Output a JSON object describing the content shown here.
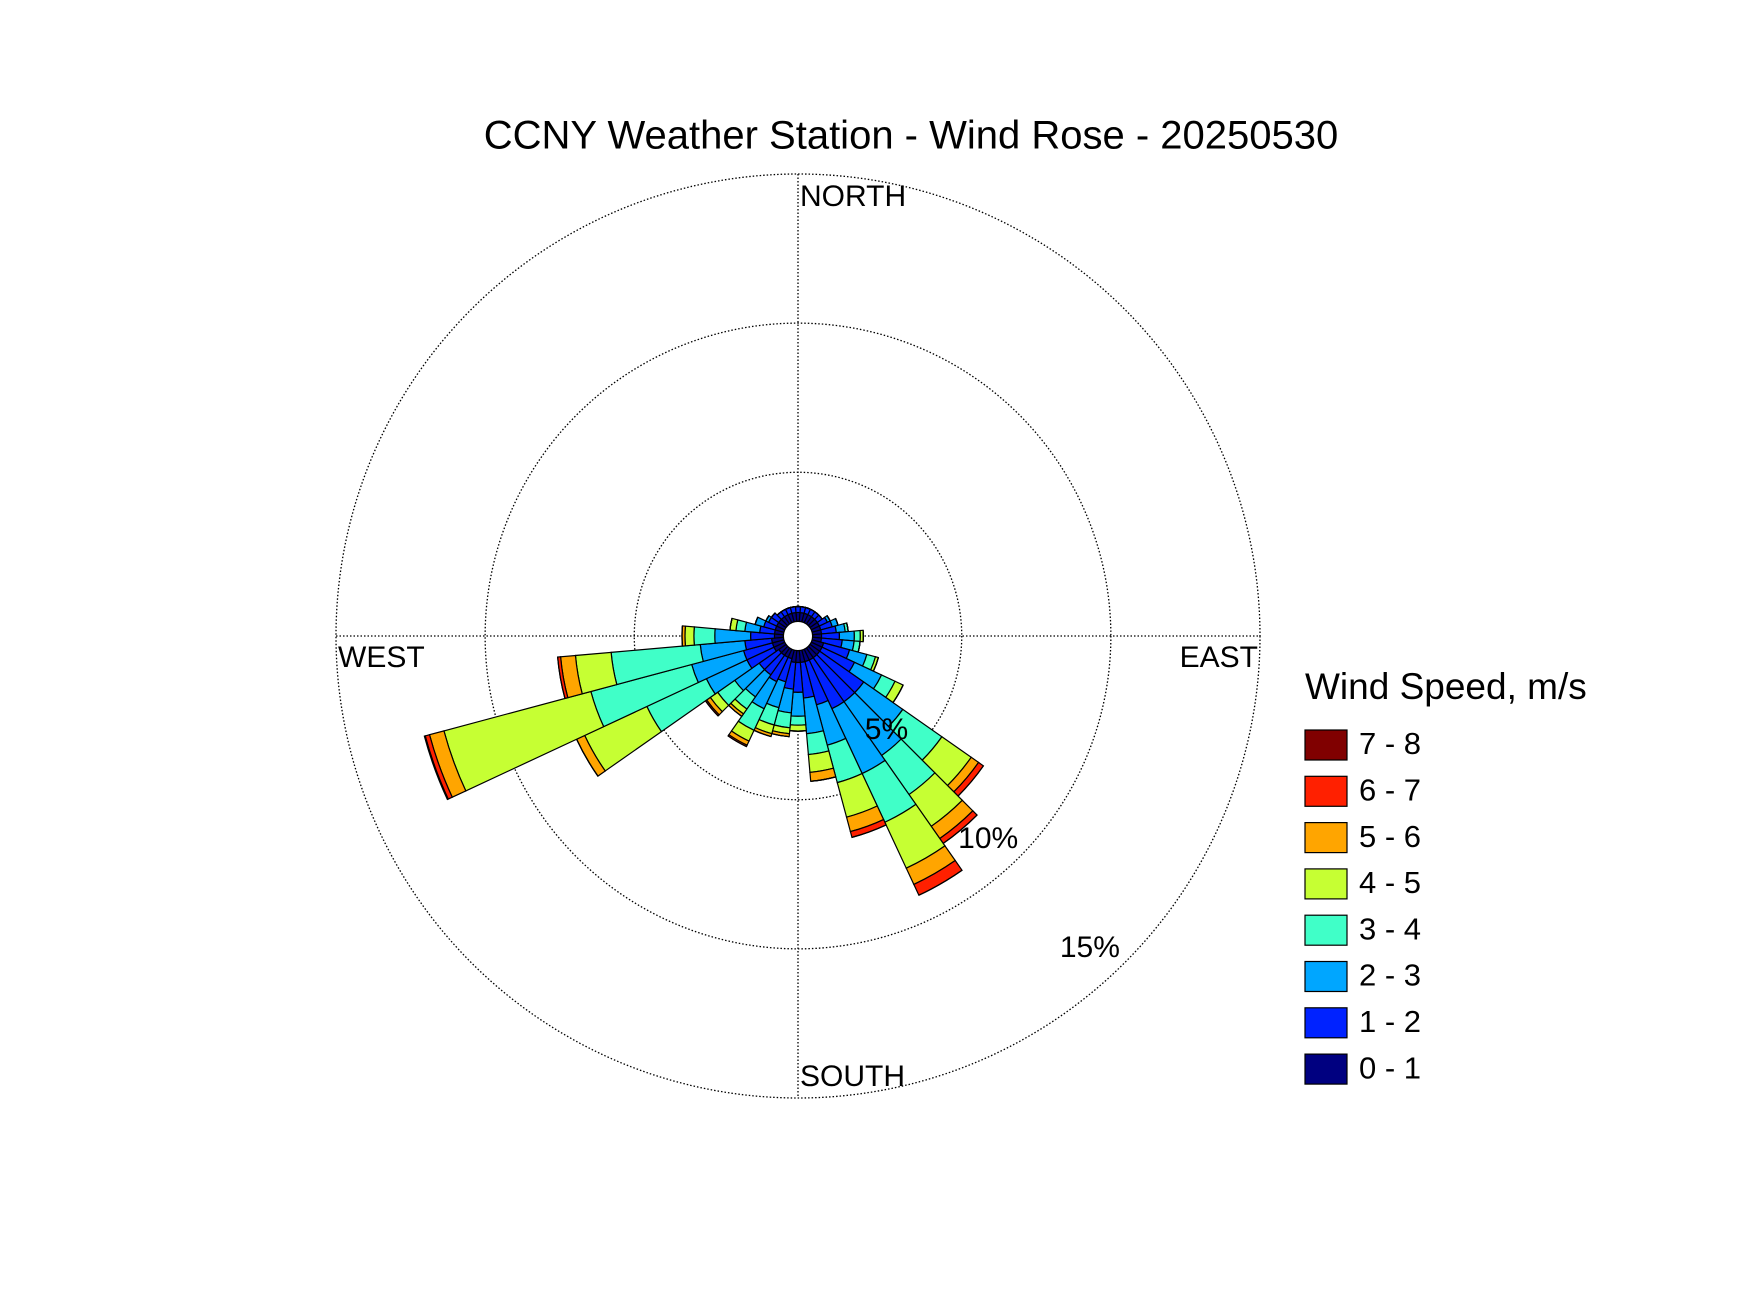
{
  "chart_data": {
    "type": "windrose",
    "title": "CCNY Weather Station - Wind Rose - 20250530",
    "compass_labels": [
      "NORTH",
      "EAST",
      "SOUTH",
      "WEST"
    ],
    "legend_title": "Wind Speed, m/s",
    "directions": [
      0,
      10,
      20,
      30,
      40,
      50,
      60,
      70,
      80,
      90,
      100,
      110,
      120,
      130,
      140,
      150,
      160,
      170,
      180,
      190,
      200,
      210,
      220,
      230,
      240,
      250,
      260,
      270,
      280,
      290,
      300,
      310,
      320,
      330,
      340,
      350
    ],
    "rlim": [
      0,
      15
    ],
    "rticks": [
      {
        "value": 5,
        "label": "5%"
      },
      {
        "value": 10,
        "label": "10%"
      },
      {
        "value": 15,
        "label": "15%"
      }
    ],
    "grid": true,
    "series": [
      {
        "name": "0 - 1",
        "color": "#000080",
        "values": [
          0.3,
          0.3,
          0.3,
          0.3,
          0.3,
          0.3,
          0.3,
          0.3,
          0.3,
          0.3,
          0.3,
          0.4,
          0.4,
          0.4,
          0.4,
          0.4,
          0.4,
          0.4,
          0.4,
          0.4,
          0.3,
          0.3,
          0.3,
          0.3,
          0.4,
          0.4,
          0.4,
          0.3,
          0.3,
          0.3,
          0.3,
          0.3,
          0.3,
          0.3,
          0.3,
          0.3
        ]
      },
      {
        "name": "1 - 2",
        "color": "#0022ff",
        "values": [
          0.2,
          0.2,
          0.2,
          0.2,
          0.2,
          0.2,
          0.3,
          0.4,
          0.5,
          0.6,
          0.7,
          0.9,
          1.2,
          1.8,
          1.8,
          1.8,
          1.5,
          1.2,
          1.0,
          0.9,
          0.8,
          0.9,
          0.8,
          0.8,
          1.0,
          1.0,
          0.9,
          0.8,
          0.5,
          0.4,
          0.3,
          0.3,
          0.2,
          0.2,
          0.2,
          0.2
        ]
      },
      {
        "name": "2 - 3",
        "color": "#00a6ff",
        "values": [
          0,
          0,
          0,
          0,
          0,
          0,
          0.1,
          0.2,
          0.3,
          0.5,
          0.4,
          0.6,
          1.0,
          1.6,
          2.2,
          2.4,
          1.4,
          1.2,
          0.8,
          0.8,
          0.9,
          1.0,
          0.9,
          1.0,
          1.5,
          1.8,
          1.5,
          1.2,
          0.5,
          0.3,
          0.1,
          0,
          0,
          0,
          0,
          0
        ]
      },
      {
        "name": "3 - 4",
        "color": "#40ffc8",
        "values": [
          0,
          0,
          0,
          0,
          0,
          0,
          0,
          0,
          0.1,
          0.2,
          0.2,
          0.3,
          0.5,
          1.6,
          1.6,
          1.8,
          1.3,
          0.7,
          0.3,
          0.5,
          0.6,
          0.8,
          0.5,
          0.7,
          2.2,
          3.5,
          3.0,
          0.7,
          0.3,
          0,
          0,
          0,
          0,
          0,
          0,
          0
        ]
      },
      {
        "name": "4 - 5",
        "color": "#c6ff33",
        "values": [
          0,
          0,
          0,
          0,
          0,
          0,
          0,
          0,
          0,
          0.1,
          0,
          0.1,
          0.3,
          1.2,
          1.3,
          1.7,
          1.2,
          0.6,
          0.2,
          0.2,
          0.3,
          0.4,
          0.2,
          0.3,
          2.3,
          5.1,
          1.2,
          0.3,
          0.2,
          0,
          0,
          0,
          0,
          0,
          0,
          0
        ]
      },
      {
        "name": "5 - 6",
        "color": "#ffa500",
        "values": [
          0,
          0,
          0,
          0,
          0,
          0,
          0,
          0,
          0,
          0,
          0,
          0,
          0,
          0.3,
          0.5,
          0.6,
          0.5,
          0.3,
          0,
          0.1,
          0.1,
          0.15,
          0.1,
          0.15,
          0.3,
          0.5,
          0.5,
          0.1,
          0,
          0,
          0,
          0,
          0,
          0,
          0,
          0
        ]
      },
      {
        "name": "6 - 7",
        "color": "#ff2000",
        "values": [
          0,
          0,
          0,
          0,
          0,
          0,
          0,
          0,
          0,
          0,
          0,
          0,
          0,
          0.2,
          0.2,
          0.4,
          0.2,
          0,
          0,
          0,
          0,
          0.05,
          0,
          0.05,
          0,
          0.15,
          0.1,
          0,
          0,
          0,
          0,
          0,
          0,
          0,
          0,
          0
        ]
      },
      {
        "name": "7 - 8",
        "color": "#800000",
        "values": [
          0,
          0,
          0,
          0,
          0,
          0,
          0,
          0,
          0,
          0,
          0,
          0,
          0,
          0,
          0,
          0,
          0,
          0,
          0,
          0,
          0,
          0,
          0,
          0,
          0,
          0.03,
          0,
          0,
          0,
          0,
          0,
          0,
          0,
          0,
          0,
          0
        ]
      }
    ]
  }
}
